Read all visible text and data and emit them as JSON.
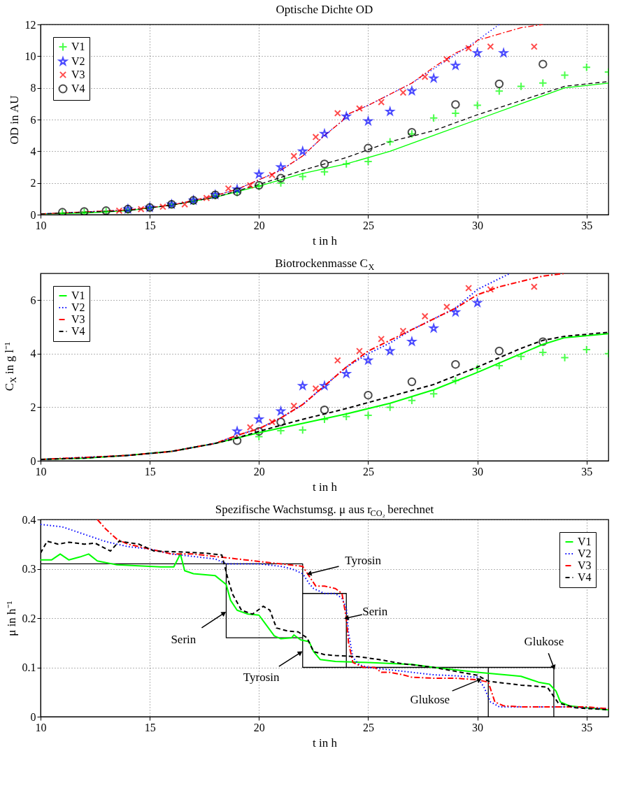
{
  "chart_data": [
    {
      "type": "scatter",
      "title": "Optische Dichte OD",
      "xlabel": "t in h",
      "ylabel": "OD in AU",
      "xlim": [
        10,
        36
      ],
      "xticks": [
        10,
        15,
        20,
        25,
        30,
        35
      ],
      "ylim": [
        0,
        12
      ],
      "yticks": [
        0,
        2,
        4,
        6,
        8,
        10,
        12
      ],
      "grid": true,
      "legend": "top left",
      "series": [
        {
          "type": "line",
          "color": "#00ff00",
          "line_style": "solid",
          "x": [
            10,
            12,
            14,
            16,
            18,
            20,
            22,
            24,
            26,
            28,
            30,
            32,
            34,
            36
          ],
          "values": [
            0.05,
            0.1,
            0.25,
            0.6,
            1.1,
            1.8,
            2.6,
            3.2,
            4.0,
            5.0,
            6.0,
            7.0,
            8.0,
            8.3
          ]
        },
        {
          "type": "line",
          "color": "#0000ff",
          "line_style": "dotted",
          "x": [
            10,
            14,
            16,
            18,
            19,
            20,
            21,
            22,
            23,
            23.8,
            24,
            25,
            26,
            27,
            28,
            29,
            30,
            31
          ],
          "values": [
            0.05,
            0.3,
            0.6,
            1.2,
            1.6,
            2.2,
            2.8,
            3.7,
            5.0,
            5.9,
            6.3,
            6.9,
            7.6,
            8.3,
            9.2,
            10.1,
            11.0,
            12.0
          ]
        },
        {
          "type": "line",
          "color": "#ff0000",
          "line_style": "dashdot",
          "x": [
            10,
            14,
            16,
            18,
            19,
            20,
            21,
            22,
            23,
            23.8,
            24,
            25,
            26,
            27,
            28,
            29,
            29.8,
            30,
            31,
            32,
            33
          ],
          "values": [
            0.05,
            0.3,
            0.6,
            1.2,
            1.6,
            2.2,
            2.8,
            3.7,
            5.0,
            5.9,
            6.3,
            6.9,
            7.6,
            8.3,
            9.3,
            10.2,
            10.7,
            11.0,
            11.4,
            11.8,
            12.0
          ]
        },
        {
          "type": "line",
          "color": "#000000",
          "line_style": "dashed",
          "x": [
            10,
            14,
            16,
            18,
            20,
            22,
            24,
            26,
            28,
            30,
            32,
            34,
            36
          ],
          "values": [
            0.05,
            0.25,
            0.6,
            1.1,
            1.9,
            2.8,
            3.6,
            4.6,
            5.3,
            6.3,
            7.2,
            8.1,
            8.4
          ]
        },
        {
          "name": "V1",
          "color": "#00ff00",
          "marker": "cross",
          "x": [
            11,
            12,
            13,
            14,
            15,
            16,
            17,
            18,
            19,
            20,
            21,
            22,
            23,
            24,
            25,
            26,
            27,
            28,
            29,
            30,
            31,
            32,
            33,
            34,
            35,
            36
          ],
          "values": [
            0.1,
            0.15,
            0.2,
            0.3,
            0.45,
            0.65,
            0.85,
            1.2,
            1.4,
            1.8,
            2.0,
            2.4,
            2.7,
            3.2,
            3.35,
            4.6,
            5.1,
            6.1,
            6.4,
            6.9,
            7.8,
            8.1,
            8.3,
            8.8,
            9.3,
            9.0
          ]
        },
        {
          "name": "V2",
          "color": "#0000ff",
          "marker": "star",
          "x": [
            14,
            15,
            16,
            17,
            18,
            19,
            20,
            21,
            22,
            23,
            24,
            25,
            26,
            27,
            28,
            29,
            30,
            31.2
          ],
          "values": [
            0.35,
            0.45,
            0.65,
            0.9,
            1.25,
            1.6,
            2.55,
            3.0,
            4.0,
            5.1,
            6.2,
            5.9,
            6.5,
            7.8,
            8.6,
            9.4,
            10.2,
            10.2
          ]
        },
        {
          "name": "V3",
          "color": "#ff0000",
          "marker": "x",
          "x": [
            13.6,
            14.6,
            15.6,
            16.6,
            17.6,
            18.6,
            19.6,
            20.6,
            21.6,
            22.6,
            23.6,
            24.6,
            25.6,
            26.6,
            27.6,
            28.6,
            29.6,
            30.6,
            32.6
          ],
          "values": [
            0.25,
            0.35,
            0.5,
            0.65,
            1.05,
            1.65,
            1.85,
            2.5,
            3.7,
            4.9,
            6.4,
            6.7,
            7.1,
            7.7,
            8.7,
            9.8,
            10.5,
            10.6,
            10.6
          ]
        },
        {
          "name": "V4",
          "color": "#000000",
          "marker": "circle",
          "x": [
            11,
            12,
            13,
            14,
            15,
            16,
            17,
            18,
            19,
            20,
            21,
            23,
            25,
            27,
            29,
            31,
            33
          ],
          "values": [
            0.15,
            0.2,
            0.25,
            0.35,
            0.45,
            0.65,
            0.9,
            1.25,
            1.45,
            1.85,
            2.3,
            3.2,
            4.2,
            5.2,
            6.95,
            8.25,
            9.5
          ]
        }
      ]
    },
    {
      "type": "line",
      "title": "Biotrockenmasse C$_{X}$",
      "xlabel": "t in h",
      "ylabel": "C$_{X}$ in g l⁻¹",
      "xlim": [
        10,
        36
      ],
      "xticks": [
        10,
        15,
        20,
        25,
        30,
        35
      ],
      "ylim": [
        0,
        7
      ],
      "yticks": [
        0,
        2,
        4,
        6
      ],
      "grid": true,
      "legend": "top left",
      "series": [
        {
          "name": "V1",
          "color": "#00ff00",
          "line_style": "solid",
          "x": [
            10,
            12,
            14,
            16,
            18,
            19,
            20,
            22,
            24,
            26,
            28,
            30,
            32,
            33,
            34,
            36
          ],
          "values": [
            0.05,
            0.1,
            0.2,
            0.35,
            0.65,
            0.85,
            1.05,
            1.4,
            1.75,
            2.15,
            2.65,
            3.3,
            4.0,
            4.35,
            4.6,
            4.75
          ]
        },
        {
          "name": "V2",
          "color": "#0000ff",
          "line_style": "dotted",
          "x": [
            10,
            14,
            16,
            18,
            19,
            20,
            21,
            22,
            23,
            24,
            25,
            26,
            27,
            28,
            29,
            30,
            31,
            31.5
          ],
          "values": [
            0.05,
            0.2,
            0.35,
            0.65,
            0.95,
            1.2,
            1.6,
            2.1,
            2.8,
            3.5,
            4.0,
            4.4,
            4.9,
            5.3,
            5.7,
            6.4,
            6.8,
            7.0
          ]
        },
        {
          "name": "V3",
          "color": "#ff0000",
          "line_style": "dashdot",
          "x": [
            10,
            14,
            16,
            18,
            19,
            20,
            21,
            22,
            23,
            24,
            25,
            26,
            27,
            28,
            29,
            30,
            31,
            32,
            33,
            34
          ],
          "values": [
            0.05,
            0.2,
            0.35,
            0.65,
            0.95,
            1.2,
            1.6,
            2.1,
            2.8,
            3.5,
            4.1,
            4.5,
            4.9,
            5.3,
            5.7,
            6.2,
            6.5,
            6.7,
            6.9,
            7.0
          ]
        },
        {
          "name": "V4",
          "color": "#000000",
          "line_style": "dashed",
          "x": [
            10,
            12,
            14,
            16,
            18,
            19,
            20,
            22,
            24,
            26,
            28,
            30,
            32,
            33,
            34,
            36
          ],
          "values": [
            0.05,
            0.1,
            0.2,
            0.35,
            0.65,
            0.85,
            1.1,
            1.55,
            1.95,
            2.4,
            2.85,
            3.5,
            4.2,
            4.5,
            4.65,
            4.8
          ]
        },
        {
          "type": "scatter",
          "color": "#00ff00",
          "marker": "cross",
          "x": [
            20,
            21,
            22,
            23,
            24,
            25,
            26,
            27,
            28,
            29,
            30,
            31,
            32,
            33,
            34,
            35,
            36
          ],
          "values": [
            0.9,
            1.12,
            1.15,
            1.55,
            1.65,
            1.7,
            2.0,
            2.25,
            2.5,
            3.0,
            3.45,
            3.55,
            3.9,
            4.05,
            3.85,
            4.15,
            4.0
          ]
        },
        {
          "type": "scatter",
          "color": "#0000ff",
          "marker": "star",
          "x": [
            19,
            20,
            21,
            22,
            23,
            24,
            25,
            26,
            27,
            28,
            29,
            30
          ],
          "values": [
            1.1,
            1.55,
            1.85,
            2.8,
            2.8,
            3.25,
            3.75,
            4.1,
            4.45,
            4.95,
            5.55,
            5.9
          ]
        },
        {
          "type": "scatter",
          "color": "#ff0000",
          "marker": "x",
          "x": [
            19.6,
            20.6,
            21.6,
            22.6,
            23.6,
            24.6,
            25.6,
            26.6,
            27.6,
            28.6,
            29.6,
            30.6,
            32.6
          ],
          "values": [
            1.25,
            1.45,
            2.05,
            2.7,
            3.75,
            4.1,
            4.55,
            4.85,
            5.4,
            5.75,
            6.45,
            6.4,
            6.5
          ]
        },
        {
          "type": "scatter",
          "color": "#000000",
          "marker": "circle",
          "x": [
            19,
            20,
            21,
            23,
            25,
            27,
            29,
            31,
            33
          ],
          "values": [
            0.75,
            1.1,
            1.45,
            1.9,
            2.45,
            2.95,
            3.6,
            4.1,
            4.45
          ]
        }
      ]
    },
    {
      "type": "line",
      "title": "Spezifische Wachstumsg. μ aus r$_{CO₂}$ berechnet",
      "xlabel": "t in h",
      "ylabel": "μ in h⁻¹",
      "xlim": [
        10,
        36
      ],
      "xticks": [
        10,
        15,
        20,
        25,
        30,
        35
      ],
      "ylim": [
        0,
        0.4
      ],
      "yticks": [
        0,
        0.1,
        0.2,
        0.3,
        0.4
      ],
      "grid": true,
      "legend": "top right",
      "series": [
        {
          "name": "V1",
          "color": "#00ff00",
          "line_style": "solid",
          "x": [
            10,
            10.5,
            10.9,
            11.3,
            11.8,
            12.2,
            12.6,
            13.5,
            14.5,
            15.5,
            16.1,
            16.4,
            16.6,
            17,
            18,
            18.5,
            18.7,
            19,
            19.5,
            20,
            20.3,
            20.7,
            21,
            21.5,
            21.6,
            21.9,
            22.3,
            22.5,
            22.8,
            23.5,
            25,
            27,
            28,
            30,
            31.5,
            32,
            32.8,
            33.3,
            33.6,
            33.8,
            34.2,
            35,
            36
          ],
          "values": [
            0.318,
            0.318,
            0.33,
            0.318,
            0.324,
            0.33,
            0.316,
            0.308,
            0.306,
            0.304,
            0.304,
            0.33,
            0.296,
            0.29,
            0.286,
            0.268,
            0.236,
            0.216,
            0.208,
            0.206,
            0.188,
            0.164,
            0.158,
            0.16,
            0.166,
            0.156,
            0.152,
            0.132,
            0.116,
            0.112,
            0.11,
            0.106,
            0.1,
            0.09,
            0.084,
            0.082,
            0.07,
            0.066,
            0.052,
            0.03,
            0.022,
            0.018,
            0.014
          ]
        },
        {
          "name": "V2",
          "color": "#0000ff",
          "line_style": "dotted",
          "x": [
            10,
            11,
            12,
            13,
            14,
            15,
            16,
            17,
            18,
            18.5,
            19,
            20,
            21,
            21.5,
            22,
            22.3,
            22.5,
            23,
            23.5,
            23.8,
            24,
            24.1,
            24.3,
            24.6,
            25,
            26,
            27,
            28,
            29,
            30,
            30.3,
            30.6,
            31,
            32,
            33,
            34,
            35,
            36
          ],
          "values": [
            0.39,
            0.385,
            0.37,
            0.355,
            0.345,
            0.34,
            0.33,
            0.325,
            0.32,
            0.31,
            0.31,
            0.31,
            0.305,
            0.3,
            0.29,
            0.27,
            0.26,
            0.25,
            0.25,
            0.24,
            0.22,
            0.17,
            0.12,
            0.105,
            0.1,
            0.095,
            0.09,
            0.085,
            0.083,
            0.08,
            0.06,
            0.03,
            0.02,
            0.02,
            0.02,
            0.02,
            0.018,
            0.016
          ]
        },
        {
          "name": "V3",
          "color": "#ff0000",
          "line_style": "dashdot",
          "x": [
            12.6,
            13,
            13.5,
            14,
            15,
            16,
            17,
            18,
            19,
            20,
            21,
            22,
            22.3,
            22.6,
            23,
            23.5,
            23.8,
            24,
            24.1,
            24.3,
            24.8,
            25.3,
            25.6,
            26,
            26.6,
            27,
            28,
            29,
            30,
            30.5,
            30.8,
            31.2,
            32,
            33,
            34,
            35,
            36
          ],
          "values": [
            0.4,
            0.38,
            0.36,
            0.35,
            0.34,
            0.33,
            0.33,
            0.325,
            0.32,
            0.315,
            0.31,
            0.305,
            0.285,
            0.265,
            0.265,
            0.26,
            0.25,
            0.2,
            0.15,
            0.11,
            0.1,
            0.1,
            0.09,
            0.09,
            0.085,
            0.08,
            0.078,
            0.078,
            0.075,
            0.07,
            0.03,
            0.022,
            0.02,
            0.02,
            0.02,
            0.02,
            0.016
          ]
        },
        {
          "name": "V4",
          "color": "#000000",
          "line_style": "dashed",
          "x": [
            10,
            10.3,
            10.8,
            11.3,
            12,
            12.5,
            13.2,
            13.6,
            14.5,
            15.2,
            16.5,
            17.5,
            18.3,
            18.6,
            18.8,
            19.2,
            19.7,
            20.2,
            20.5,
            20.8,
            21.3,
            21.8,
            22.2,
            22.5,
            23,
            23.5,
            24.5,
            25.5,
            26.5,
            28,
            29,
            30,
            30.5,
            32,
            33.2,
            33.7,
            34.5,
            36
          ],
          "values": [
            0.332,
            0.356,
            0.35,
            0.354,
            0.35,
            0.352,
            0.336,
            0.356,
            0.35,
            0.336,
            0.334,
            0.332,
            0.328,
            0.276,
            0.248,
            0.216,
            0.208,
            0.224,
            0.216,
            0.18,
            0.174,
            0.172,
            0.16,
            0.132,
            0.126,
            0.124,
            0.122,
            0.116,
            0.108,
            0.1,
            0.092,
            0.084,
            0.072,
            0.064,
            0.06,
            0.028,
            0.018,
            0.014
          ]
        },
        {
          "color": "#000000",
          "line_style": "solid",
          "x": [
            10,
            22,
            22,
            33.5,
            33.5
          ],
          "values": [
            0.31,
            0.31,
            0.1,
            0.1,
            0
          ]
        },
        {
          "color": "#000000",
          "line_style": "solid",
          "x": [
            18.5,
            18.5,
            22
          ],
          "values": [
            0.31,
            0.16,
            0.16
          ]
        },
        {
          "color": "#000000",
          "line_style": "solid",
          "x": [
            22,
            24,
            24
          ],
          "values": [
            0.25,
            0.25,
            0.1
          ]
        },
        {
          "color": "#000000",
          "line_style": "solid",
          "x": [
            30.5,
            30.5
          ],
          "values": [
            0.1,
            0
          ]
        }
      ],
      "annotations": [
        {
          "text": "Tyrosin",
          "x": 22.3,
          "y": 0.29
        },
        {
          "text": "Serin",
          "x": 18.4,
          "y": 0.21
        },
        {
          "text": "Tyrosin",
          "x": 21.9,
          "y": 0.13
        },
        {
          "text": "Serin",
          "x": 24.0,
          "y": 0.2
        },
        {
          "text": "Glukose",
          "x": 33.5,
          "y": 0.1
        },
        {
          "text": "Glukose",
          "x": 30.1,
          "y": 0.075
        }
      ]
    }
  ]
}
